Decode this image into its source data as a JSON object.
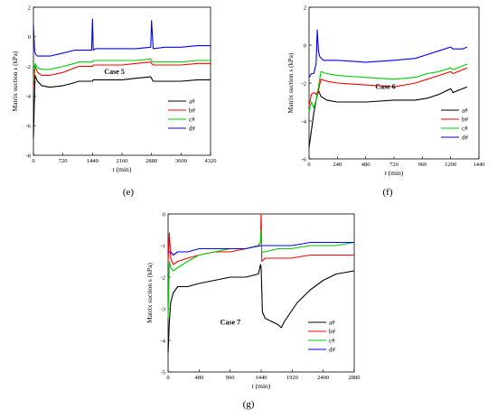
{
  "chart_data": [
    {
      "type": "line",
      "panel_label": "(e)",
      "annotation": "Case 5",
      "xlabel_italic": "t",
      "xlabel_rest": " (min)",
      "ylabel": "Matrix suction s (kPa)",
      "xlim": [
        0,
        4320
      ],
      "ylim": [
        -8,
        2
      ],
      "xticks": [
        0,
        720,
        1440,
        2160,
        2880,
        3600,
        4320
      ],
      "yticks": [
        -8,
        -6,
        -4,
        -2,
        0,
        2
      ],
      "legend_position": "right",
      "series": [
        {
          "name": "a#",
          "color": "#000000",
          "x": [
            0,
            40,
            100,
            200,
            400,
            720,
            1000,
            1100,
            1440,
            1460,
            1800,
            2160,
            2500,
            2860,
            2880,
            2920,
            3200,
            3600,
            4000,
            4320
          ],
          "y": [
            -6.8,
            -2.6,
            -3.0,
            -3.3,
            -3.4,
            -3.3,
            -3.1,
            -3.0,
            -3.0,
            -2.9,
            -2.9,
            -2.9,
            -2.8,
            -2.7,
            -2.8,
            -3.0,
            -3.0,
            -3.0,
            -2.9,
            -2.9
          ]
        },
        {
          "name": "b#",
          "color": "#ff0000",
          "x": [
            0,
            40,
            100,
            200,
            400,
            720,
            1000,
            1100,
            1440,
            1460,
            1800,
            2160,
            2500,
            2860,
            2880,
            2920,
            3200,
            3600,
            4000,
            4320
          ],
          "y": [
            -3.5,
            -2.0,
            -2.4,
            -2.6,
            -2.6,
            -2.4,
            -2.1,
            -2.0,
            -2.0,
            -1.9,
            -1.9,
            -1.9,
            -1.8,
            -1.7,
            -1.8,
            -1.9,
            -1.9,
            -1.9,
            -1.8,
            -1.8
          ]
        },
        {
          "name": "c#",
          "color": "#00cc00",
          "x": [
            0,
            40,
            100,
            200,
            400,
            720,
            1000,
            1100,
            1440,
            1460,
            1800,
            2160,
            2500,
            2860,
            2880,
            2920,
            3200,
            3600,
            4000,
            4320
          ],
          "y": [
            -3.0,
            -1.8,
            -2.1,
            -2.2,
            -2.2,
            -2.0,
            -1.8,
            -1.7,
            -1.7,
            -1.6,
            -1.6,
            -1.6,
            -1.6,
            -1.5,
            -1.6,
            -1.7,
            -1.7,
            -1.7,
            -1.6,
            -1.6
          ]
        },
        {
          "name": "d#",
          "color": "#0000ff",
          "x": [
            0,
            30,
            60,
            100,
            200,
            400,
            720,
            1000,
            1100,
            1420,
            1440,
            1460,
            1500,
            1800,
            2160,
            2500,
            2860,
            2880,
            2920,
            3200,
            3600,
            4000,
            4320
          ],
          "y": [
            0.8,
            -1.0,
            -1.2,
            -1.3,
            -1.3,
            -1.3,
            -1.1,
            -0.9,
            -0.9,
            -0.9,
            1.2,
            -0.9,
            -0.8,
            -0.8,
            -0.8,
            -0.8,
            -0.7,
            1.1,
            -0.8,
            -0.7,
            -0.7,
            -0.6,
            -0.6
          ]
        }
      ]
    },
    {
      "type": "line",
      "panel_label": "(f)",
      "annotation": "Case 6",
      "xlabel_italic": "t",
      "xlabel_rest": " (min)",
      "ylabel": "Matrix suction s (kPa)",
      "xlim": [
        0,
        1440
      ],
      "ylim": [
        -6,
        2
      ],
      "xticks": [
        0,
        240,
        480,
        720,
        960,
        1200,
        1440
      ],
      "yticks": [
        -6,
        -4,
        -2,
        0,
        2
      ],
      "legend_position": "bottom-right",
      "series": [
        {
          "name": "a#",
          "color": "#000000",
          "x": [
            0,
            20,
            40,
            60,
            80,
            100,
            150,
            240,
            480,
            720,
            900,
            1000,
            1100,
            1200,
            1220,
            1300,
            1340
          ],
          "y": [
            -5.4,
            -4.5,
            -3.6,
            -2.9,
            -2.4,
            -2.7,
            -2.9,
            -3.0,
            -3.0,
            -2.9,
            -2.9,
            -2.8,
            -2.6,
            -2.3,
            -2.5,
            -2.3,
            -2.2
          ]
        },
        {
          "name": "b#",
          "color": "#ff0000",
          "x": [
            0,
            20,
            40,
            60,
            80,
            100,
            150,
            240,
            480,
            720,
            900,
            1000,
            1100,
            1200,
            1220,
            1300,
            1340
          ],
          "y": [
            -3.2,
            -2.6,
            -2.5,
            -2.6,
            -2.4,
            -1.8,
            -1.9,
            -2.0,
            -2.1,
            -2.2,
            -2.0,
            -1.8,
            -1.6,
            -1.4,
            -1.5,
            -1.3,
            -1.2
          ]
        },
        {
          "name": "c#",
          "color": "#00cc00",
          "x": [
            0,
            20,
            40,
            60,
            80,
            100,
            150,
            240,
            480,
            720,
            900,
            1000,
            1100,
            1200,
            1220,
            1300,
            1340
          ],
          "y": [
            -3.5,
            -3.0,
            -3.3,
            -2.9,
            -2.2,
            -1.4,
            -1.5,
            -1.6,
            -1.7,
            -1.8,
            -1.7,
            -1.5,
            -1.4,
            -1.2,
            -1.3,
            -1.1,
            -1.0
          ]
        },
        {
          "name": "d#",
          "color": "#0000ff",
          "x": [
            0,
            20,
            40,
            60,
            70,
            80,
            90,
            120,
            240,
            480,
            720,
            900,
            1000,
            1100,
            1200,
            1220,
            1300,
            1340
          ],
          "y": [
            -1.7,
            -1.5,
            -1.5,
            -1.0,
            0.8,
            -0.3,
            -0.6,
            -0.8,
            -0.8,
            -0.9,
            -0.8,
            -0.7,
            -0.5,
            -0.3,
            -0.1,
            -0.2,
            -0.2,
            -0.1
          ]
        }
      ]
    },
    {
      "type": "line",
      "panel_label": "(g)",
      "annotation": "Case 7",
      "xlabel_italic": "t",
      "xlabel_rest": " (min)",
      "ylabel": "Matrix suction s (kPa)",
      "xlim": [
        0,
        2880
      ],
      "ylim": [
        -5,
        0
      ],
      "xticks": [
        0,
        480,
        960,
        1440,
        1920,
        2400,
        2880
      ],
      "yticks": [
        -5,
        -4,
        -3,
        -2,
        -1,
        0
      ],
      "legend_position": "bottom-right",
      "series": [
        {
          "name": "a#",
          "color": "#000000",
          "x": [
            0,
            20,
            40,
            80,
            150,
            300,
            480,
            720,
            960,
            1200,
            1400,
            1430,
            1440,
            1460,
            1500,
            1600,
            1700,
            1750,
            1800,
            1900,
            2000,
            2200,
            2400,
            2600,
            2880
          ],
          "y": [
            -4.4,
            -3.4,
            -2.8,
            -2.5,
            -2.3,
            -2.3,
            -2.2,
            -2.1,
            -2.0,
            -2.0,
            -1.9,
            -1.6,
            -1.7,
            -3.1,
            -3.3,
            -3.4,
            -3.5,
            -3.6,
            -3.4,
            -3.1,
            -2.8,
            -2.4,
            -2.1,
            -1.9,
            -1.8
          ]
        },
        {
          "name": "b#",
          "color": "#ff0000",
          "x": [
            0,
            20,
            40,
            80,
            150,
            300,
            480,
            720,
            960,
            1200,
            1400,
            1430,
            1440,
            1450,
            1500,
            1700,
            1900,
            2200,
            2400,
            2600,
            2880
          ],
          "y": [
            -1.5,
            -0.6,
            -1.4,
            -1.6,
            -1.5,
            -1.4,
            -1.3,
            -1.2,
            -1.2,
            -1.1,
            -1.0,
            -0.9,
            0.0,
            -1.5,
            -1.4,
            -1.4,
            -1.4,
            -1.3,
            -1.3,
            -1.3,
            -1.3
          ]
        },
        {
          "name": "c#",
          "color": "#00cc00",
          "x": [
            0,
            20,
            40,
            80,
            150,
            300,
            480,
            720,
            960,
            1200,
            1400,
            1430,
            1440,
            1450,
            1500,
            1700,
            1900,
            2200,
            2400,
            2600,
            2880
          ],
          "y": [
            -3.3,
            -1.5,
            -1.7,
            -1.8,
            -1.7,
            -1.5,
            -1.3,
            -1.2,
            -1.1,
            -1.1,
            -1.0,
            -0.9,
            -0.5,
            -1.2,
            -1.2,
            -1.1,
            -1.1,
            -1.0,
            -1.0,
            -1.0,
            -0.9
          ]
        },
        {
          "name": "d#",
          "color": "#0000ff",
          "x": [
            0,
            40,
            80,
            150,
            300,
            480,
            720,
            960,
            1200,
            1440,
            1700,
            1920,
            2200,
            2400,
            2600,
            2880
          ],
          "y": [
            -1.2,
            -1.2,
            -1.3,
            -1.2,
            -1.2,
            -1.1,
            -1.1,
            -1.1,
            -1.1,
            -1.0,
            -1.0,
            -1.0,
            -0.9,
            -0.9,
            -0.9,
            -0.9
          ]
        }
      ]
    }
  ]
}
